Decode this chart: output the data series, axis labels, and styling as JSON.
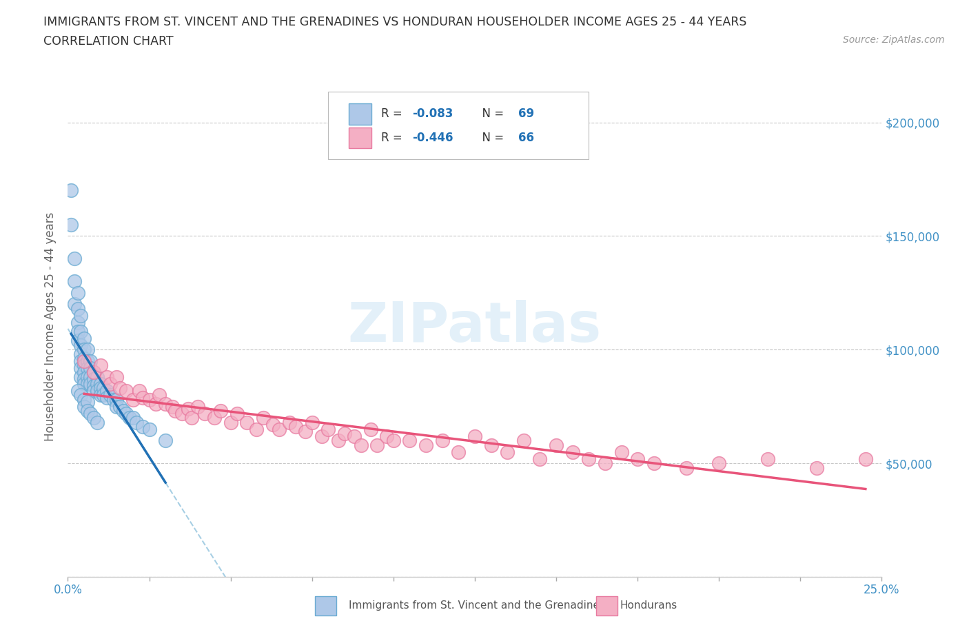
{
  "title_line1": "IMMIGRANTS FROM ST. VINCENT AND THE GRENADINES VS HONDURAN HOUSEHOLDER INCOME AGES 25 - 44 YEARS",
  "title_line2": "CORRELATION CHART",
  "source_text": "Source: ZipAtlas.com",
  "ylabel": "Householder Income Ages 25 - 44 years",
  "xmin": 0.0,
  "xmax": 0.25,
  "ymin": 0,
  "ymax": 220000,
  "yticks": [
    0,
    50000,
    100000,
    150000,
    200000
  ],
  "ytick_labels": [
    "",
    "$50,000",
    "$100,000",
    "$150,000",
    "$200,000"
  ],
  "xticks": [
    0.0,
    0.025,
    0.05,
    0.075,
    0.1,
    0.125,
    0.15,
    0.175,
    0.2,
    0.225,
    0.25
  ],
  "xtick_labels_show": [
    "0.0%",
    "",
    "",
    "",
    "",
    "",
    "",
    "",
    "",
    "",
    "25.0%"
  ],
  "color_blue": "#aec8e8",
  "color_blue_edge": "#6aabd2",
  "color_pink": "#f4afc4",
  "color_pink_edge": "#e87aa0",
  "color_blue_line": "#2171b5",
  "color_pink_line": "#e8547a",
  "color_dashed": "#9ecae1",
  "background_color": "#ffffff",
  "grid_color": "#c8c8c8",
  "title_color": "#333333",
  "axis_label_color": "#666666",
  "tick_color_right": "#4292c6",
  "tick_color_bottom": "#4292c6",
  "blue_scatter_x": [
    0.001,
    0.001,
    0.002,
    0.002,
    0.002,
    0.003,
    0.003,
    0.003,
    0.003,
    0.003,
    0.004,
    0.004,
    0.004,
    0.004,
    0.004,
    0.004,
    0.004,
    0.005,
    0.005,
    0.005,
    0.005,
    0.005,
    0.005,
    0.005,
    0.006,
    0.006,
    0.006,
    0.006,
    0.006,
    0.007,
    0.007,
    0.007,
    0.007,
    0.008,
    0.008,
    0.008,
    0.008,
    0.009,
    0.009,
    0.009,
    0.01,
    0.01,
    0.01,
    0.011,
    0.011,
    0.012,
    0.012,
    0.013,
    0.014,
    0.015,
    0.015,
    0.016,
    0.017,
    0.018,
    0.019,
    0.02,
    0.021,
    0.023,
    0.025,
    0.03,
    0.003,
    0.004,
    0.005,
    0.005,
    0.006,
    0.006,
    0.007,
    0.008,
    0.009
  ],
  "blue_scatter_y": [
    170000,
    155000,
    140000,
    130000,
    120000,
    125000,
    118000,
    112000,
    108000,
    104000,
    115000,
    108000,
    102000,
    98000,
    95000,
    92000,
    88000,
    105000,
    100000,
    96000,
    93000,
    90000,
    87000,
    85000,
    100000,
    95000,
    92000,
    88000,
    85000,
    95000,
    92000,
    88000,
    85000,
    90000,
    87000,
    84000,
    82000,
    88000,
    85000,
    82000,
    85000,
    83000,
    80000,
    83000,
    80000,
    82000,
    79000,
    80000,
    78000,
    78000,
    75000,
    75000,
    73000,
    72000,
    70000,
    70000,
    68000,
    66000,
    65000,
    60000,
    82000,
    80000,
    78000,
    75000,
    77000,
    73000,
    72000,
    70000,
    68000
  ],
  "pink_scatter_x": [
    0.005,
    0.008,
    0.01,
    0.012,
    0.013,
    0.015,
    0.016,
    0.018,
    0.02,
    0.022,
    0.023,
    0.025,
    0.027,
    0.028,
    0.03,
    0.032,
    0.033,
    0.035,
    0.037,
    0.038,
    0.04,
    0.042,
    0.045,
    0.047,
    0.05,
    0.052,
    0.055,
    0.058,
    0.06,
    0.063,
    0.065,
    0.068,
    0.07,
    0.073,
    0.075,
    0.078,
    0.08,
    0.083,
    0.085,
    0.088,
    0.09,
    0.093,
    0.095,
    0.098,
    0.1,
    0.105,
    0.11,
    0.115,
    0.12,
    0.125,
    0.13,
    0.135,
    0.14,
    0.145,
    0.15,
    0.155,
    0.16,
    0.165,
    0.17,
    0.175,
    0.18,
    0.19,
    0.2,
    0.215,
    0.23,
    0.245
  ],
  "pink_scatter_y": [
    95000,
    90000,
    93000,
    88000,
    85000,
    88000,
    83000,
    82000,
    78000,
    82000,
    79000,
    78000,
    76000,
    80000,
    76000,
    75000,
    73000,
    72000,
    74000,
    70000,
    75000,
    72000,
    70000,
    73000,
    68000,
    72000,
    68000,
    65000,
    70000,
    67000,
    65000,
    68000,
    66000,
    64000,
    68000,
    62000,
    65000,
    60000,
    63000,
    62000,
    58000,
    65000,
    58000,
    62000,
    60000,
    60000,
    58000,
    60000,
    55000,
    62000,
    58000,
    55000,
    60000,
    52000,
    58000,
    55000,
    52000,
    50000,
    55000,
    52000,
    50000,
    48000,
    50000,
    52000,
    48000,
    52000
  ]
}
